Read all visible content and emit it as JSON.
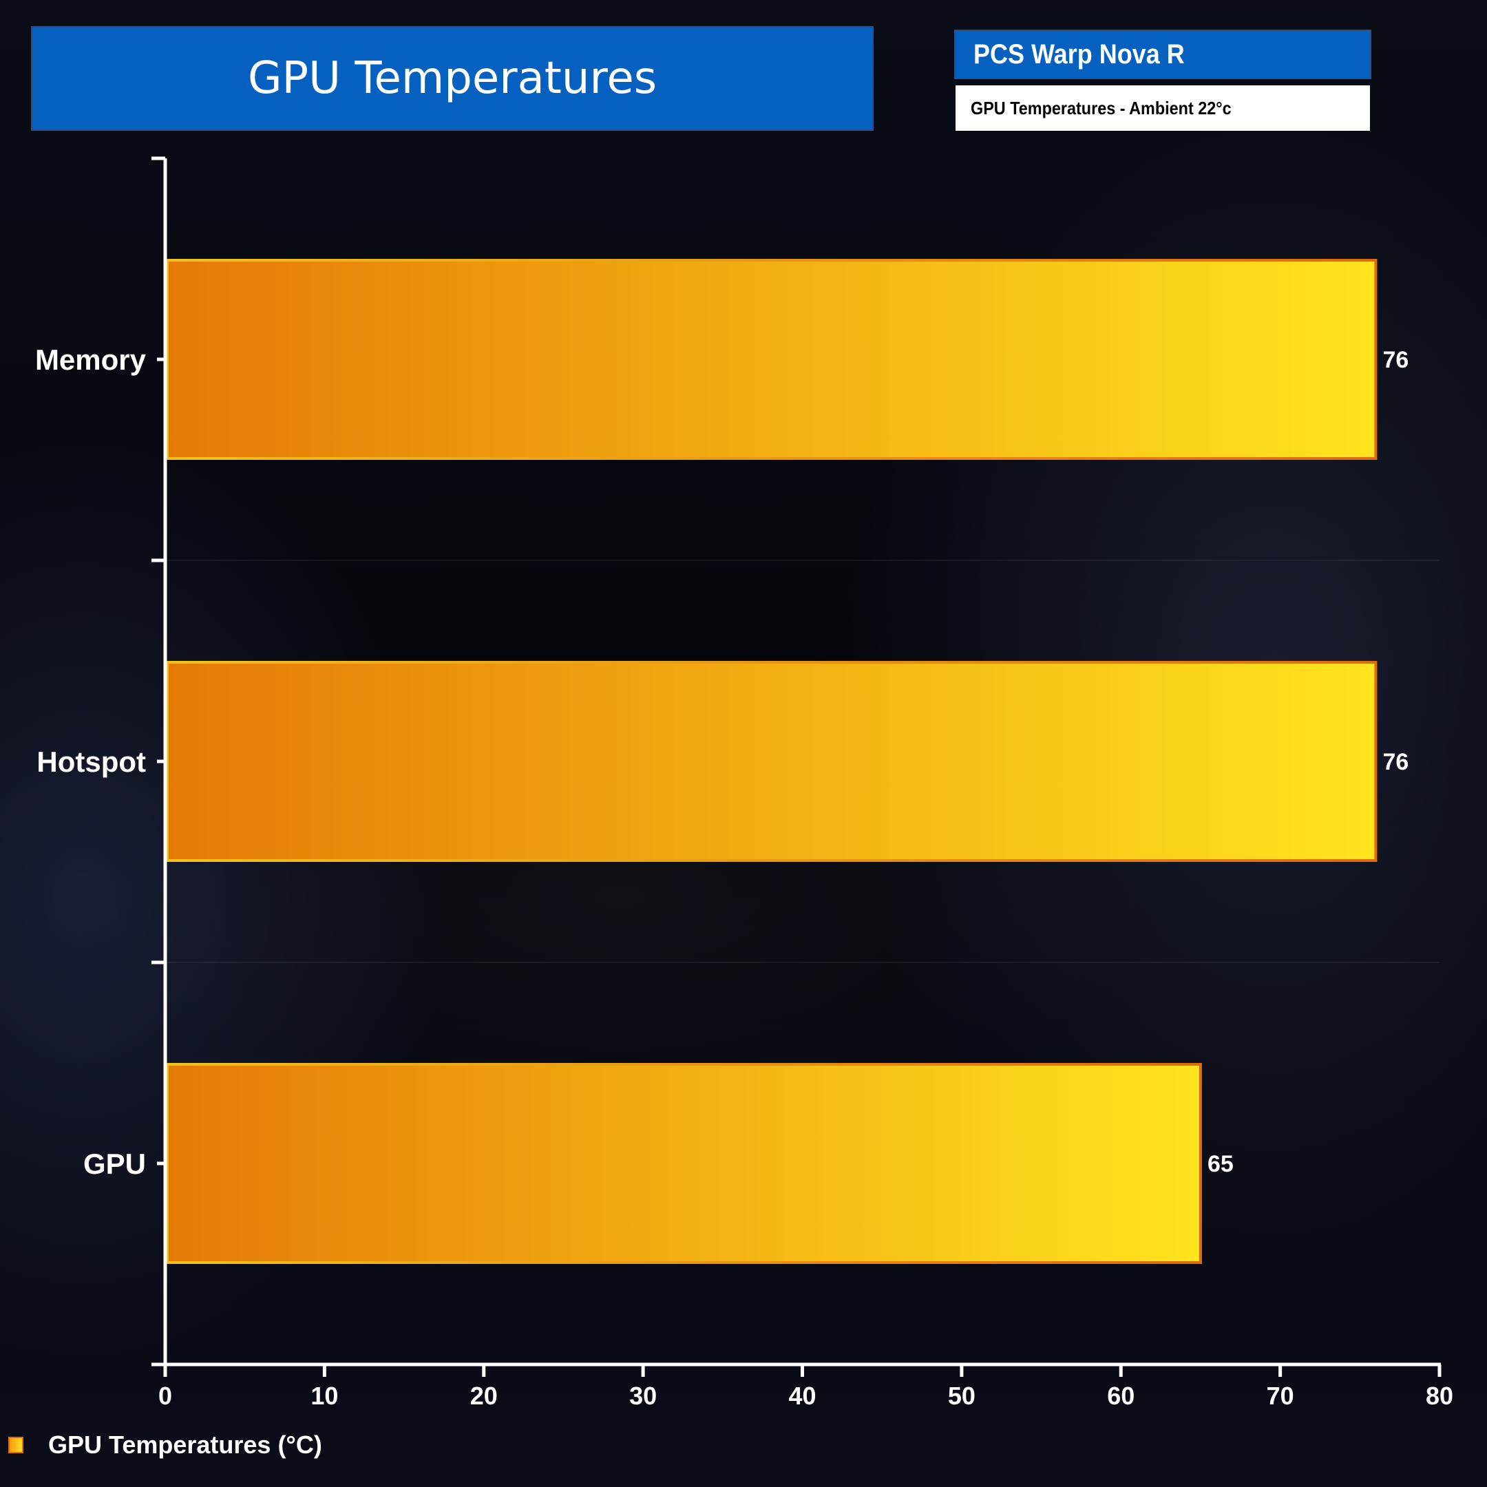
{
  "header": {
    "title": "GPU Temperatures",
    "product": "PCS Warp Nova R",
    "subtitle": "GPU Temperatures - Ambient 22°c"
  },
  "legend": {
    "label": "GPU Temperatures (°C)"
  },
  "colors": {
    "bar_start": "#e57a08",
    "bar_end": "#ffe41e",
    "bar_border_left": "#f2c21a",
    "bar_border_right": "#e06a10",
    "header_blue": "#0560c0"
  },
  "chart_data": {
    "type": "bar",
    "orientation": "horizontal",
    "categories": [
      "Memory",
      "Hotspot",
      "GPU"
    ],
    "series": [
      {
        "name": "GPU Temperatures (°C)",
        "values": [
          76,
          76,
          65
        ]
      }
    ],
    "xlim": [
      0,
      80
    ],
    "xticks": [
      0,
      10,
      20,
      30,
      40,
      50,
      60,
      70,
      80
    ],
    "title": "GPU Temperatures",
    "legend_position": "bottom-left",
    "grid": false
  }
}
